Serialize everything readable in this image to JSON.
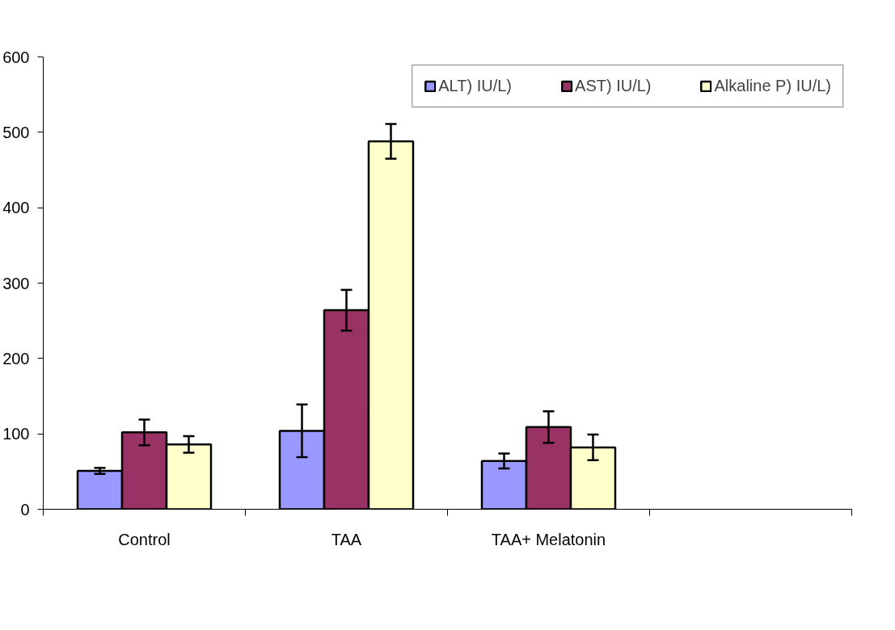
{
  "chart_data": {
    "type": "bar",
    "categories": [
      "Control",
      "TAA",
      "TAA+ Melatonin",
      null
    ],
    "series": [
      {
        "name": "ALT) IU/L)",
        "color": "#9999ff",
        "values": [
          51,
          104,
          64,
          null
        ],
        "errors": [
          4,
          35,
          10,
          null
        ]
      },
      {
        "name": "AST) IU/L)",
        "color": "#993366",
        "values": [
          102,
          264,
          109,
          null
        ],
        "errors": [
          17,
          27,
          21,
          null
        ]
      },
      {
        "name": "Alkaline P) IU/L)",
        "color": "#ffffcc",
        "values": [
          86,
          488,
          82,
          null
        ],
        "errors": [
          11,
          23,
          17,
          null
        ]
      }
    ],
    "ylim": [
      0,
      600
    ],
    "yticks": [
      0,
      100,
      200,
      300,
      400,
      500,
      600
    ],
    "grid": false,
    "legend": "top right"
  }
}
